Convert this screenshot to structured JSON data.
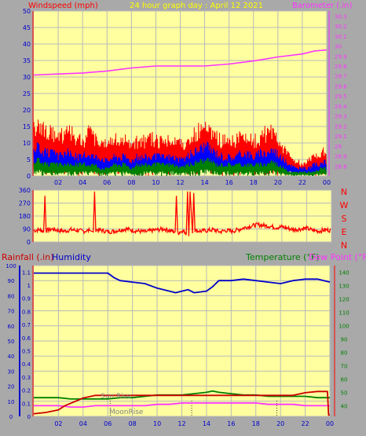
{
  "header": {
    "left_label": "Windspeed (mph)",
    "title": "24 hour graph day : April 12 2021",
    "right_label": "Barometer (.in)"
  },
  "colors": {
    "plot_bg": "#ffffa0",
    "grid": "#b9b9b9",
    "frame": "#a9a9a9",
    "wind_gust": "#ff0000",
    "wind_avg": "#0000ff",
    "wind_low": "#008000",
    "barometer": "#ff33ff",
    "direction": "#ff0000",
    "rainfall": "#cc0000",
    "humidity": "#0000cc",
    "temperature": "#008000",
    "dew_point": "#ff33ff",
    "title": "#ffff00",
    "sun_moon": "#808080"
  },
  "chart_data": [
    {
      "type": "line",
      "name": "wind-baro",
      "x_tick_labels": [
        "02",
        "04",
        "06",
        "08",
        "10",
        "12",
        "14",
        "16",
        "18",
        "20",
        "22",
        "00"
      ],
      "y_left_ticks": [
        "50",
        "45",
        "40",
        "35",
        "30",
        "25",
        "20",
        "15",
        "10",
        "5",
        "0"
      ],
      "y_right_ticks": [
        "30.3",
        "30.2",
        "30.1",
        "30",
        "29.9",
        "29.8",
        "29.7",
        "29.6",
        "29.5",
        "29.4",
        "29.3",
        "29.2",
        "29.1",
        "29",
        "28.9",
        "28.8"
      ],
      "ylim_left": [
        0,
        50
      ],
      "ylim_right": [
        28.7,
        30.35
      ],
      "xlim": [
        0,
        24
      ],
      "series": [
        {
          "key": "gust",
          "x": [
            0,
            0.5,
            1,
            1.5,
            2,
            2.5,
            3,
            3.5,
            4,
            4.5,
            5,
            5.5,
            6,
            6.5,
            7,
            7.5,
            8,
            8.5,
            9,
            9.5,
            10,
            10.5,
            11,
            11.5,
            12,
            12.5,
            13,
            13.5,
            14,
            14.5,
            15,
            15.5,
            16,
            16.5,
            17,
            17.5,
            18,
            18.5,
            19,
            19.5,
            20,
            20.5,
            21,
            21.5,
            22,
            22.5,
            23,
            23.5,
            24
          ],
          "y": [
            12,
            13,
            11,
            12,
            10,
            11,
            12,
            10,
            9,
            11,
            10,
            9,
            8,
            9,
            10,
            9,
            8,
            9,
            9,
            10,
            9,
            9,
            10,
            9,
            8,
            9,
            10,
            12,
            13,
            11,
            10,
            9,
            10,
            9,
            11,
            10,
            9,
            10,
            11,
            12,
            10,
            7,
            5,
            4,
            3,
            4,
            5,
            6,
            7
          ]
        },
        {
          "key": "avg",
          "x": [
            0,
            0.5,
            1,
            1.5,
            2,
            2.5,
            3,
            3.5,
            4,
            4.5,
            5,
            5.5,
            6,
            6.5,
            7,
            7.5,
            8,
            8.5,
            9,
            9.5,
            10,
            10.5,
            11,
            11.5,
            12,
            12.5,
            13,
            13.5,
            14,
            14.5,
            15,
            15.5,
            16,
            16.5,
            17,
            17.5,
            18,
            18.5,
            19,
            19.5,
            20,
            20.5,
            21,
            21.5,
            22,
            22.5,
            23,
            23.5,
            24
          ],
          "y": [
            8,
            7,
            6,
            6,
            5,
            6,
            6,
            5,
            5,
            6,
            5,
            5,
            4,
            5,
            5,
            5,
            4,
            5,
            5,
            5,
            5,
            5,
            5,
            5,
            4,
            5,
            6,
            7,
            8,
            7,
            6,
            5,
            5,
            5,
            6,
            6,
            5,
            6,
            6,
            7,
            6,
            4,
            3,
            2,
            2,
            2,
            3,
            3,
            4
          ]
        },
        {
          "key": "low",
          "x": [
            0,
            0.5,
            1,
            1.5,
            2,
            2.5,
            3,
            3.5,
            4,
            4.5,
            5,
            5.5,
            6,
            6.5,
            7,
            7.5,
            8,
            8.5,
            9,
            9.5,
            10,
            10.5,
            11,
            11.5,
            12,
            12.5,
            13,
            13.5,
            14,
            14.5,
            15,
            15.5,
            16,
            16.5,
            17,
            17.5,
            18,
            18.5,
            19,
            19.5,
            20,
            20.5,
            21,
            21.5,
            22,
            22.5,
            23,
            23.5,
            24
          ],
          "y": [
            4,
            4,
            3,
            3,
            3,
            3,
            3,
            3,
            3,
            3,
            3,
            2,
            2,
            3,
            3,
            3,
            2,
            3,
            3,
            3,
            3,
            3,
            3,
            3,
            2,
            3,
            3,
            4,
            4,
            4,
            3,
            3,
            3,
            3,
            3,
            3,
            3,
            3,
            3,
            4,
            3,
            2,
            1,
            1,
            1,
            1,
            1,
            2,
            2
          ]
        },
        {
          "key": "baro",
          "x": [
            0,
            2,
            4,
            6,
            8,
            10,
            12,
            14,
            16,
            18,
            20,
            22,
            23,
            24
          ],
          "y": [
            29.71,
            29.72,
            29.73,
            29.75,
            29.78,
            29.8,
            29.8,
            29.8,
            29.82,
            29.85,
            29.89,
            29.92,
            29.95,
            29.96
          ]
        }
      ]
    },
    {
      "type": "line",
      "name": "wind-direction",
      "x_tick_labels": [
        "02",
        "04",
        "06",
        "08",
        "10",
        "12",
        "14",
        "16",
        "18",
        "20",
        "22",
        "00"
      ],
      "y_ticks": [
        "360",
        "270",
        "180",
        "90",
        "0"
      ],
      "compass": [
        "N",
        "W",
        "S",
        "E",
        "N"
      ],
      "ylim": [
        0,
        360
      ],
      "xlim": [
        0,
        24
      ],
      "series": [
        {
          "key": "direction",
          "x": [
            0,
            0.5,
            0.8,
            0.9,
            1,
            1.5,
            2,
            2.5,
            3,
            3.5,
            4,
            4.5,
            4.8,
            4.9,
            5,
            5.5,
            6,
            6.5,
            7,
            7.5,
            8,
            8.5,
            9,
            9.5,
            10,
            10.5,
            11,
            11.4,
            11.5,
            11.6,
            12,
            12.3,
            12.4,
            12.5,
            12.6,
            12.8,
            12.9,
            13,
            13.5,
            14,
            14.5,
            15,
            15.5,
            16,
            16.5,
            17,
            17.5,
            18,
            18.5,
            19,
            19.5,
            20,
            20.5,
            21,
            21.5,
            22,
            22.5,
            23,
            23.5,
            24
          ],
          "y": [
            80,
            85,
            70,
            320,
            80,
            90,
            80,
            75,
            85,
            80,
            75,
            80,
            70,
            350,
            85,
            80,
            70,
            75,
            85,
            90,
            80,
            75,
            70,
            80,
            85,
            90,
            80,
            70,
            320,
            60,
            80,
            60,
            350,
            40,
            350,
            60,
            340,
            80,
            75,
            80,
            85,
            70,
            80,
            75,
            85,
            100,
            110,
            120,
            115,
            110,
            100,
            105,
            95,
            85,
            90,
            95,
            80,
            75,
            85,
            80
          ]
        }
      ]
    },
    {
      "type": "line",
      "name": "rain-humidity-temperature",
      "x_tick_labels": [
        "02",
        "04",
        "06",
        "08",
        "10",
        "12",
        "14",
        "16",
        "18",
        "20",
        "22",
        "00"
      ],
      "y_left_ticks": [
        "100",
        "90",
        "80",
        "70",
        "60",
        "50",
        "40",
        "30",
        "20",
        "10",
        "0"
      ],
      "y_rain_ticks": [
        "1.1",
        "1",
        "0.9",
        "0.8",
        "0.7",
        "0.6",
        "0.5",
        "0.4",
        "0.3",
        "0.2",
        "0.1",
        "0"
      ],
      "y_right_ticks": [
        "140",
        "130",
        "120",
        "110",
        "100",
        "90",
        "80",
        "70",
        "60",
        "50",
        "40"
      ],
      "ylim_left": [
        0,
        100
      ],
      "ylim_rain": [
        0,
        1.15
      ],
      "ylim_right": [
        32,
        145
      ],
      "xlim": [
        0,
        24
      ],
      "labels": {
        "rainfall": "Rainfall (.in)",
        "humidity": "Humidity",
        "temperature": "Temperature (°F)",
        "dew_point": "Dew Point (°F)",
        "sunrise": "Sun Rise",
        "moonrise": "MoonRise"
      },
      "markers": {
        "sunrise": 6.2,
        "moonrise": 12.8,
        "sunset": 19.7
      },
      "series": [
        {
          "key": "humidity",
          "x": [
            0,
            1,
            2,
            3,
            4,
            5,
            6,
            6.5,
            7,
            8,
            9,
            10,
            11,
            11.5,
            12,
            12.5,
            13,
            14,
            14.5,
            15,
            16,
            17,
            18,
            19,
            20,
            21,
            22,
            23,
            24
          ],
          "y": [
            95,
            95,
            95,
            95,
            95,
            95,
            95,
            92,
            90,
            89,
            88,
            85,
            83,
            82,
            83,
            84,
            82,
            83,
            86,
            90,
            90,
            91,
            90,
            89,
            88,
            90,
            91,
            91,
            89
          ]
        },
        {
          "key": "temperature",
          "x": [
            0,
            1,
            2,
            3,
            4,
            5,
            6,
            7,
            8,
            9,
            10,
            11,
            12,
            13,
            14,
            14.5,
            15,
            16,
            17,
            18,
            19,
            20,
            21,
            22,
            23,
            24
          ],
          "y": [
            46,
            46,
            46,
            45,
            45,
            45,
            45,
            46,
            46,
            47,
            48,
            48,
            48,
            49,
            50,
            51,
            50,
            49,
            48,
            48,
            47,
            47,
            47,
            47,
            46,
            46
          ]
        },
        {
          "key": "dew_point",
          "x": [
            0,
            1,
            2,
            3,
            4,
            5,
            6,
            7,
            8,
            9,
            10,
            11,
            12,
            13,
            14,
            15,
            16,
            17,
            18,
            19,
            20,
            21,
            22,
            23,
            24
          ],
          "y": [
            40,
            40,
            40,
            39,
            39,
            40,
            40,
            40,
            40,
            40,
            41,
            41,
            42,
            42,
            42,
            42,
            42,
            42,
            42,
            41,
            41,
            41,
            40,
            40,
            40
          ]
        },
        {
          "key": "rainfall",
          "x": [
            0,
            1,
            2,
            2.5,
            3,
            3.5,
            4,
            4.5,
            5,
            5.5,
            6,
            8,
            10,
            12,
            14,
            16,
            18,
            20,
            21,
            22,
            23,
            23.8,
            23.9,
            24
          ],
          "y": [
            0.02,
            0.03,
            0.05,
            0.08,
            0.1,
            0.12,
            0.14,
            0.15,
            0.16,
            0.16,
            0.16,
            0.16,
            0.16,
            0.16,
            0.16,
            0.16,
            0.16,
            0.16,
            0.16,
            0.18,
            0.19,
            0.19,
            0.01,
            0.01
          ]
        }
      ]
    }
  ]
}
